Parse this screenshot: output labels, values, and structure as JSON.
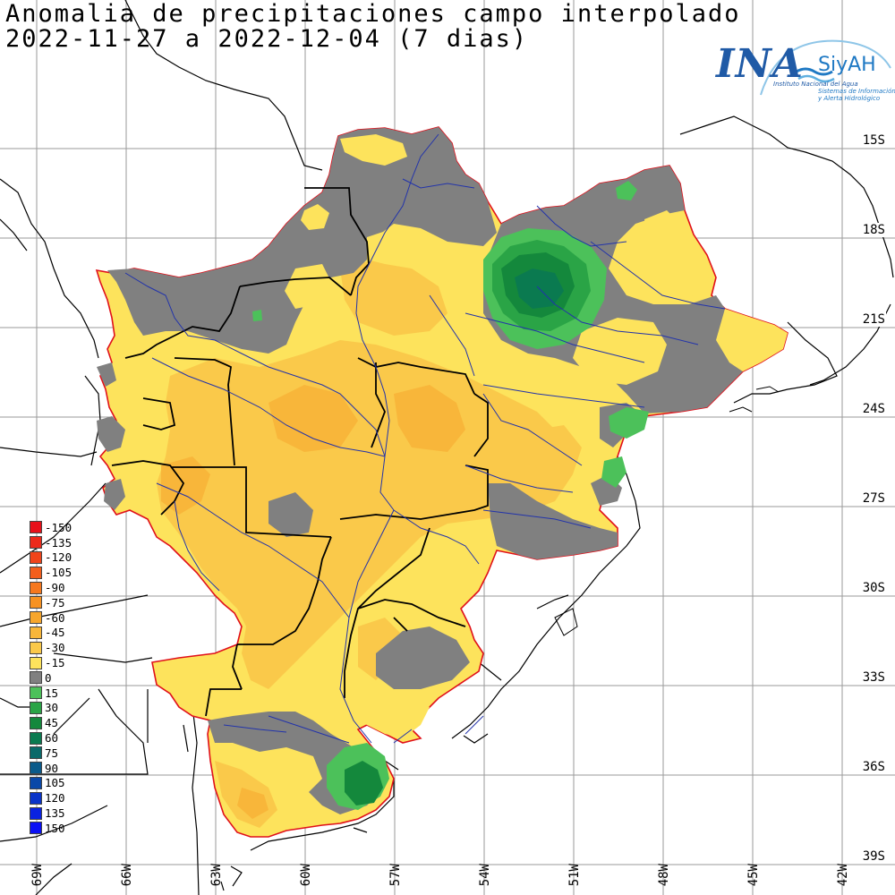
{
  "title": {
    "line1": "Anomalia de precipitaciones campo interpolado",
    "line2": "2022-11-27 a 2022-12-04 (7 dias)"
  },
  "logo": {
    "brand": "INA",
    "product": "SiyAH",
    "subtitle": "Instituto Nacional del Agua",
    "tagline": "Sistemas de Información y Alerta Hidrológico"
  },
  "latitude_labels": [
    "15S",
    "18S",
    "21S",
    "24S",
    "27S",
    "30S",
    "33S",
    "36S",
    "39S"
  ],
  "longitude_labels": [
    "69W",
    "66W",
    "63W",
    "60W",
    "57W",
    "54W",
    "51W",
    "48W",
    "45W",
    "42W"
  ],
  "legend": {
    "entries": [
      {
        "label": "-150",
        "color": "#e8101a"
      },
      {
        "label": "-135",
        "color": "#ec2a1a"
      },
      {
        "label": "-120",
        "color": "#f0441a"
      },
      {
        "label": "-105",
        "color": "#f35e1c"
      },
      {
        "label": "-90",
        "color": "#f6781e"
      },
      {
        "label": "-75",
        "color": "#f79222"
      },
      {
        "label": "-60",
        "color": "#f7a62c"
      },
      {
        "label": "-45",
        "color": "#f8b63a"
      },
      {
        "label": "-30",
        "color": "#fac94a"
      },
      {
        "label": "-15",
        "color": "#fde35c"
      },
      {
        "label": "0",
        "color": "#808080"
      },
      {
        "label": "15",
        "color": "#4cc15a"
      },
      {
        "label": "30",
        "color": "#2aa446"
      },
      {
        "label": "45",
        "color": "#14883c"
      },
      {
        "label": "60",
        "color": "#0a7a50"
      },
      {
        "label": "75",
        "color": "#0a6a6a"
      },
      {
        "label": "90",
        "color": "#0a5a8a"
      },
      {
        "label": "105",
        "color": "#0a48a8"
      },
      {
        "label": "120",
        "color": "#0a34c8"
      },
      {
        "label": "135",
        "color": "#0a22e0"
      },
      {
        "label": "150",
        "color": "#0a10f4"
      }
    ]
  },
  "colors": {
    "outline": "#e0101a",
    "rivers": "#2233aa",
    "borders": "#000000"
  }
}
